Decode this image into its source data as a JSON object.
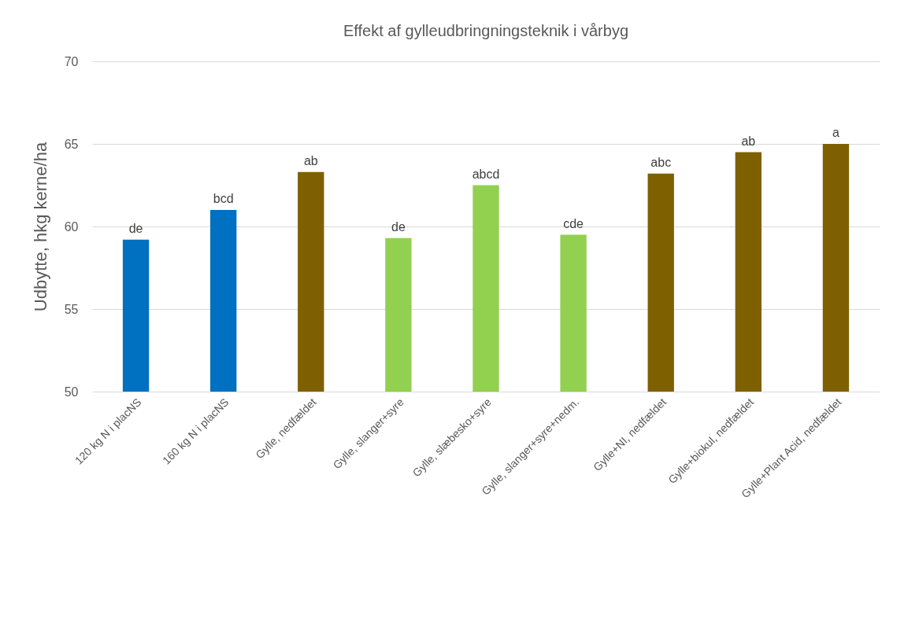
{
  "chart_data": {
    "type": "bar",
    "title": "Effekt af gylleudbringningsteknik i vårbyg",
    "ylabel": "Udbytte, hkg kerne/ha",
    "categories": [
      "120 kg N i placNS",
      "160 kg N i placNS",
      "Gylle, nedfældet",
      "Gylle, slanger+syre",
      "Gylle, slæbesko+syre",
      "Gylle, slanger+syre+nedm.",
      "Gylle+NI, nedfældet",
      "Gylle+biokul, nedfældet",
      "Gylle+Plant Acid, nedfældet"
    ],
    "values": [
      59.2,
      61.0,
      63.3,
      59.3,
      62.5,
      59.5,
      63.2,
      64.5,
      65.0
    ],
    "colors": [
      "#0070c0",
      "#0070c0",
      "#7f6000",
      "#92d050",
      "#92d050",
      "#92d050",
      "#7f6000",
      "#7f6000",
      "#7f6000"
    ],
    "ylim": [
      50,
      70
    ],
    "yticks": [
      50,
      55,
      60,
      65,
      70
    ],
    "grid": "y",
    "annotations": [
      {
        "text": "de",
        "x": "120 kg N i placNS",
        "y": 59.2
      },
      {
        "text": "bcd",
        "x": "160 kg N i placNS",
        "y": 61.0
      },
      {
        "text": "ab",
        "x": "Gylle, nedfældet",
        "y": 63.3
      },
      {
        "text": "de",
        "x": "Gylle, slanger+syre",
        "y": 59.3
      },
      {
        "text": "abcd",
        "x": "Gylle, slæbesko+syre",
        "y": 62.5
      },
      {
        "text": "cde",
        "x": "Gylle, slanger+syre+nedm.",
        "y": 59.5
      },
      {
        "text": "abc",
        "x": "Gylle+NI, nedfældet",
        "y": 63.2
      },
      {
        "text": "ab",
        "x": "Gylle+biokul, nedfældet",
        "y": 64.5
      },
      {
        "text": "a",
        "x": "Gylle+Plant Acid, nedfældet",
        "y": 65.0
      }
    ]
  }
}
